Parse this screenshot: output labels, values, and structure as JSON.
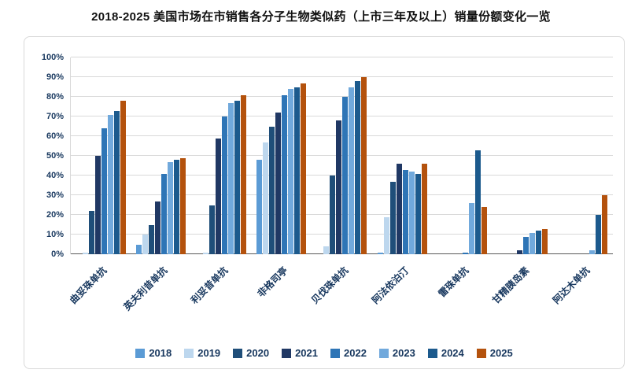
{
  "title": "2018-2025 美国市场在市销售各分子生物类似药（上市三年及以上）销量份额变化一览",
  "chart_data": {
    "type": "bar",
    "title": "2018-2025 美国市场在市销售各分子生物类似药（上市三年及以上）销量份额变化一览",
    "categories": [
      "曲妥珠单抗",
      "英夫利昔单抗",
      "利妥昔单抗",
      "非格司亭",
      "贝伐珠单抗",
      "阿法依泊汀",
      "雷珠单抗",
      "甘精胰岛素",
      "阿达木单抗"
    ],
    "series": [
      {
        "name": "2018",
        "color": "#5B9BD5",
        "values": [
          0,
          5,
          0,
          48,
          0,
          1,
          0,
          0,
          0
        ]
      },
      {
        "name": "2019",
        "color": "#BDD7EE",
        "values": [
          1,
          10,
          1,
          57,
          4,
          19,
          0,
          0,
          0
        ]
      },
      {
        "name": "2020",
        "color": "#1F4E79",
        "values": [
          22,
          15,
          25,
          65,
          40,
          37,
          0,
          0,
          0
        ]
      },
      {
        "name": "2021",
        "color": "#203864",
        "values": [
          50,
          27,
          59,
          72,
          68,
          46,
          0,
          2,
          0
        ]
      },
      {
        "name": "2022",
        "color": "#2E75B6",
        "values": [
          64,
          41,
          70,
          81,
          80,
          43,
          1,
          9,
          0
        ]
      },
      {
        "name": "2023",
        "color": "#71A9DC",
        "values": [
          71,
          47,
          77,
          84,
          85,
          42,
          26,
          11,
          2
        ]
      },
      {
        "name": "2024",
        "color": "#1C5A8D",
        "values": [
          73,
          48,
          78,
          85,
          88,
          41,
          53,
          12,
          20
        ]
      },
      {
        "name": "2025",
        "color": "#B4520D",
        "values": [
          78,
          49,
          81,
          87,
          90,
          46,
          24,
          13,
          30
        ]
      }
    ],
    "ylim": [
      0,
      100
    ],
    "y_ticks": [
      "0%",
      "10%",
      "20%",
      "30%",
      "40%",
      "50%",
      "60%",
      "70%",
      "80%",
      "90%",
      "100%"
    ],
    "grid": true,
    "legend_position": "bottom",
    "xlabel": "",
    "ylabel": ""
  }
}
